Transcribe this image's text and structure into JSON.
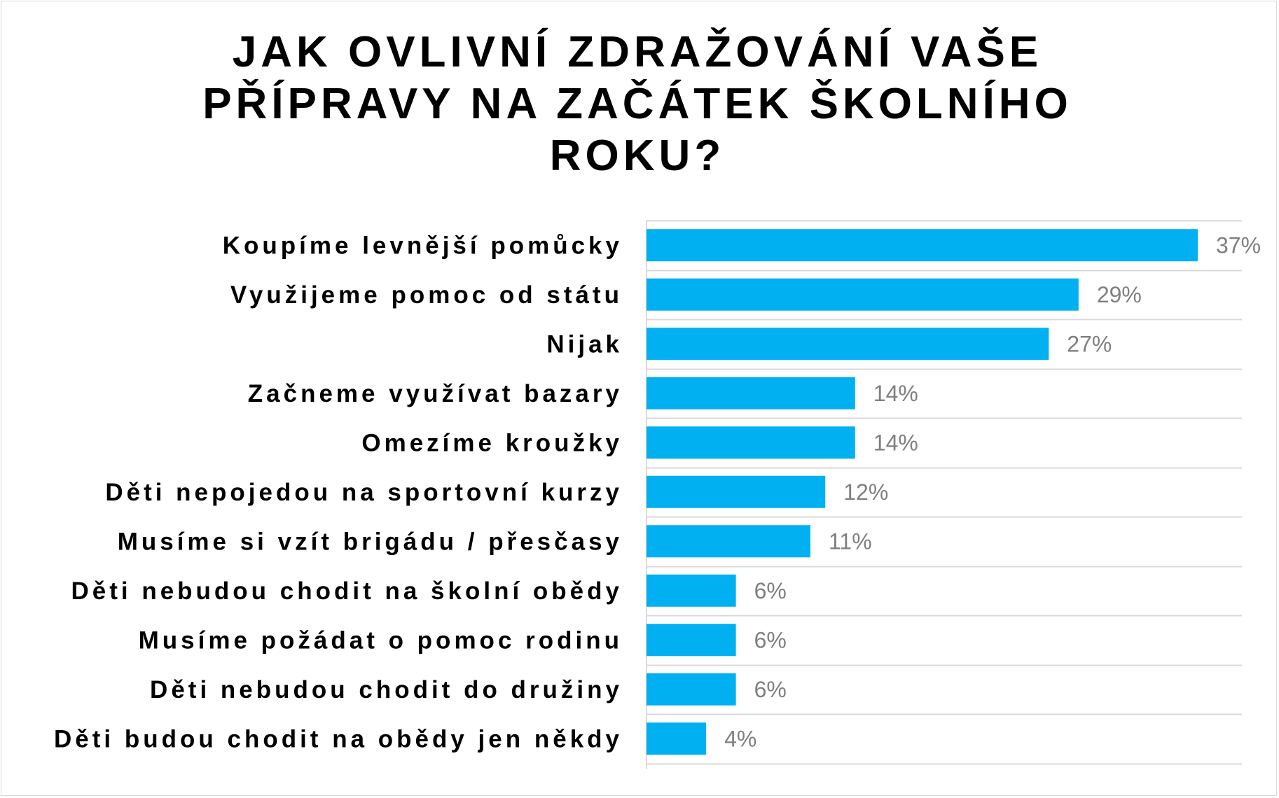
{
  "chart_data": {
    "type": "bar",
    "orientation": "horizontal",
    "title": "JAK OVLIVNÍ ZDRAŽOVÁNÍ VAŠE PŘÍPRAVY NA ZAČÁTEK ŠKOLNÍHO ROKU?",
    "categories": [
      "Koupíme levnější pomůcky",
      "Využijeme pomoc od státu",
      "Nijak",
      "Začneme využívat bazary",
      "Omezíme kroužky",
      "Děti nepojedou na sportovní kurzy",
      "Musíme si vzít brigádu / přesčasy",
      "Děti nebudou chodit na školní obědy",
      "Musíme požádat o pomoc rodinu",
      "Děti nebudou chodit do družiny",
      "Děti budou chodit na obědy jen někdy"
    ],
    "values": [
      37,
      29,
      27,
      14,
      14,
      12,
      11,
      6,
      6,
      6,
      4
    ],
    "value_labels": [
      "37%",
      "29%",
      "27%",
      "14%",
      "14%",
      "12%",
      "11%",
      "6%",
      "6%",
      "6%",
      "4%"
    ],
    "unit": "%",
    "xlim": [
      0,
      40
    ],
    "grid": true,
    "legend": "none",
    "bar_color": "#00b0f0",
    "label_color": "#7f7f7f",
    "grid_color": "#d9d9d9"
  }
}
